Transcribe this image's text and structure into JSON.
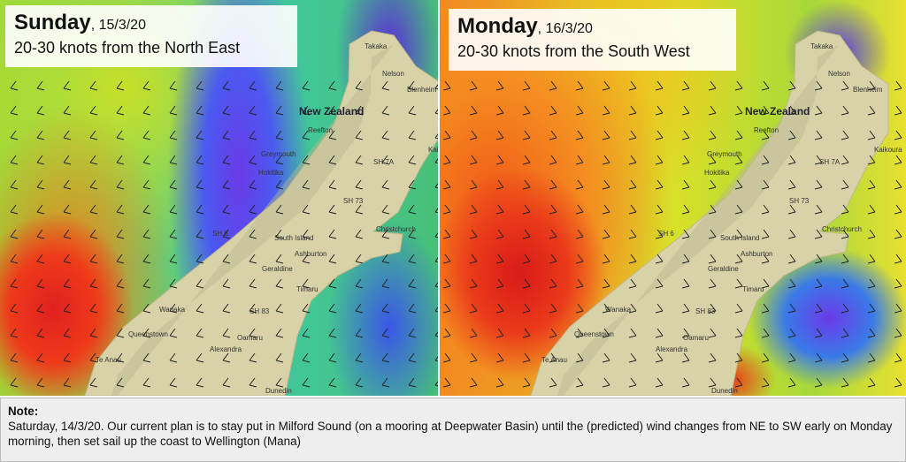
{
  "panels": [
    {
      "day": "Sunday",
      "date": ", 15/3/20",
      "subtitle": "20-30 knots from the North East"
    },
    {
      "day": "Monday",
      "date": ", 16/3/20",
      "subtitle": "20-30 knots from the South West"
    }
  ],
  "map_labels": [
    "Takaka",
    "Nelson",
    "Blenheim",
    "New Zealand",
    "Reefton",
    "Greymouth",
    "Hokitika",
    "SH 7A",
    "Kaikoura",
    "SH 73",
    "SH 6",
    "South Island",
    "Christchurch",
    "Ashburton",
    "Geraldine",
    "Timaru",
    "Wanaka",
    "SH 83",
    "Queenstown",
    "Oamaru",
    "Alexandra",
    "Te Anau",
    "Dunedin"
  ],
  "note": {
    "heading": "Note:",
    "text": "Saturday, 14/3/20.  Our current plan is to stay put in Milford Sound (on a mooring at Deepwater Basin) until the (predicted) wind changes from NE to SW early on Monday morning, then set sail up the coast to Wellington (Mana)"
  }
}
